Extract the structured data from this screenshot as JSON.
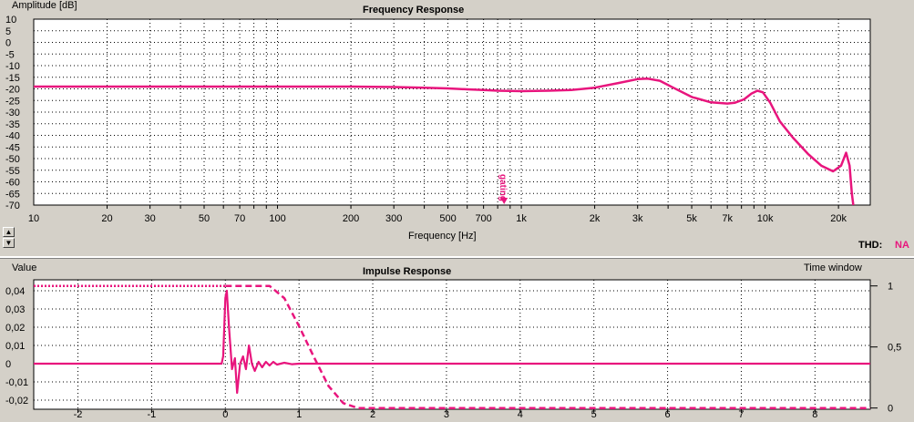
{
  "freq_panel": {
    "title": "Frequency Response",
    "ylabel": "Amplitude [dB]",
    "xlabel": "Frequency [Hz]",
    "gating_label": "gating",
    "thd_label": "THD:",
    "thd_value": "NA",
    "y_ticks": [
      "10",
      "5",
      "0",
      "-5",
      "-10",
      "-15",
      "-20",
      "-25",
      "-30",
      "-35",
      "-40",
      "-45",
      "-50",
      "-55",
      "-60",
      "-65",
      "-70"
    ],
    "x_tick_labels": [
      "10",
      "20",
      "30",
      "50",
      "70",
      "100",
      "200",
      "300",
      "500",
      "700",
      "1k",
      "2k",
      "3k",
      "5k",
      "7k",
      "10k",
      "20k"
    ]
  },
  "impulse_panel": {
    "title": "Impulse Response",
    "ylabel": "Value",
    "y2label": "Time window",
    "y_ticks": [
      "0,04",
      "0,03",
      "0,02",
      "0,01",
      "0",
      "-0,01",
      "-0,02"
    ],
    "y2_ticks": [
      "1",
      "0,5",
      "0"
    ],
    "x_ticks": [
      "-2",
      "-1",
      "0",
      "1",
      "2",
      "3",
      "4",
      "5",
      "6",
      "7",
      "8"
    ]
  },
  "colors": {
    "trace": "#e8157d",
    "grid": "#000000",
    "plot_bg": "#ffffff",
    "panel_bg": "#d4d0c8"
  },
  "chart_data": [
    {
      "type": "line",
      "title": "Frequency Response",
      "xlabel": "Frequency [Hz]",
      "ylabel": "Amplitude [dB]",
      "xscale": "log",
      "xlim": [
        10,
        27000
      ],
      "ylim": [
        -70,
        10
      ],
      "grid": true,
      "gating_marker_x": 850,
      "series": [
        {
          "x": [
            10,
            20,
            50,
            100,
            200,
            300,
            400,
            500,
            600,
            700,
            800,
            1000,
            1300,
            1600,
            2000,
            2500,
            3000,
            3300,
            3700,
            4200,
            5000,
            6000,
            7000,
            7500,
            8200,
            8800,
            9300,
            9800,
            10500,
            11500,
            13000,
            15000,
            17000,
            19000,
            20500,
            21500,
            22200,
            22700,
            23000
          ],
          "y": [
            -19,
            -19,
            -19,
            -19,
            -19,
            -19.2,
            -19.5,
            -19.8,
            -20.2,
            -20.5,
            -20.8,
            -21,
            -20.8,
            -20.5,
            -19.5,
            -17.5,
            -15.8,
            -15.6,
            -16.5,
            -19.5,
            -23.5,
            -25.8,
            -26.3,
            -26,
            -24.5,
            -22,
            -20.8,
            -21.5,
            -26,
            -34,
            -41,
            -48,
            -53,
            -55.5,
            -53,
            -47.5,
            -53,
            -65,
            -72
          ]
        }
      ]
    },
    {
      "type": "line",
      "title": "Impulse Response",
      "ylabel": "Value",
      "y2label": "Time window",
      "xlim": [
        -2.6,
        8.75
      ],
      "ylim": [
        -0.025,
        0.046
      ],
      "y2lim": [
        -0.01,
        1.05
      ],
      "grid": true,
      "series": [
        {
          "style": "solid",
          "x": [
            -2.6,
            -0.05,
            -0.03,
            0.0,
            0.02,
            0.05,
            0.09,
            0.13,
            0.16,
            0.2,
            0.24,
            0.28,
            0.32,
            0.36,
            0.4,
            0.45,
            0.5,
            0.55,
            0.6,
            0.65,
            0.7,
            0.8,
            0.9,
            1.0,
            1.2,
            1.6,
            2.0,
            5.5,
            8.75
          ],
          "y": [
            0,
            0,
            0.004,
            0.036,
            0.04,
            0.02,
            -0.003,
            0.003,
            -0.016,
            0.0,
            0.004,
            -0.003,
            0.01,
            0.0,
            -0.004,
            0.001,
            -0.002,
            0.001,
            -0.001,
            0.001,
            -0.0005,
            0.0005,
            -0.0003,
            0.0,
            0.0,
            0.0,
            0.0,
            0.0,
            0.0
          ]
        },
        {
          "style": "dotted",
          "axis": "y2",
          "x": [
            -2.6,
            0.0
          ],
          "y": [
            1,
            1
          ]
        },
        {
          "style": "dashed",
          "axis": "y2",
          "x": [
            0.0,
            0.6,
            0.8,
            1.0,
            1.2,
            1.4,
            1.6,
            1.8,
            8.75
          ],
          "y": [
            1,
            1,
            0.9,
            0.67,
            0.42,
            0.18,
            0.04,
            0,
            0
          ]
        }
      ]
    }
  ]
}
